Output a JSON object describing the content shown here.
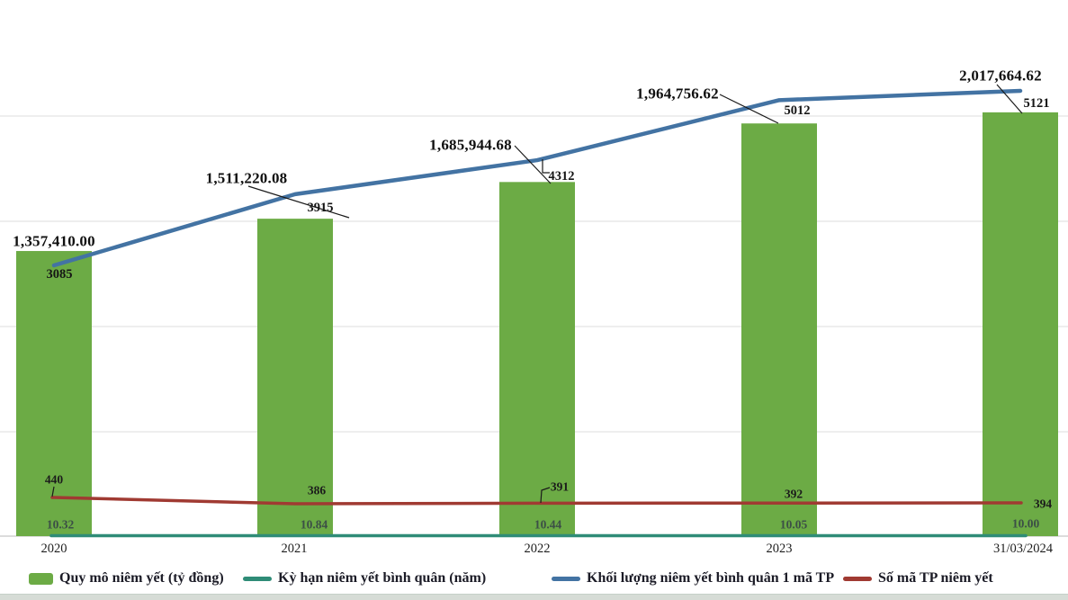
{
  "chart_data": {
    "type": "combo",
    "title": "",
    "categories": [
      "2020",
      "2021",
      "2022",
      "2023",
      "31/03/2024"
    ],
    "series": [
      {
        "name": "Quy mô niêm yết (tỷ đồng)",
        "type": "bar",
        "axis": "primary",
        "color": "#6cab45",
        "values": [
          1357410.0,
          1511220.08,
          1685944.68,
          1964756.62,
          2017664.62
        ],
        "labels": [
          "1,357,410.00",
          "1,511,220.08",
          "1,685,944.68",
          "1,964,756.62",
          "2,017,664.62"
        ]
      },
      {
        "name": "Kỳ hạn niêm yết bình quân (năm)",
        "type": "line",
        "axis": "secondary",
        "color": "#2f8c77",
        "values": [
          10.32,
          10.84,
          10.44,
          10.05,
          10.0
        ],
        "labels": [
          "10.32",
          "10.84",
          "10.44",
          "10.05",
          "10.00"
        ]
      },
      {
        "name": "Khối lượng niêm yết bình quân 1 mã TP",
        "type": "line",
        "axis": "secondary",
        "color": "#4373a3",
        "values": [
          3085,
          3915,
          4312,
          5012,
          5121
        ],
        "labels": [
          "3085",
          "3915",
          "4312",
          "5012",
          "5121"
        ]
      },
      {
        "name": "Số mã TP niêm yết",
        "type": "line",
        "axis": "secondary",
        "color": "#a03a32",
        "values": [
          440,
          386,
          391,
          392,
          394
        ],
        "labels": [
          "440",
          "386",
          "391",
          "392",
          "394"
        ]
      }
    ],
    "legend_position": "bottom",
    "grid": true,
    "primary_axis": {
      "min": 0,
      "max": 2500000,
      "gridline_interval": 500000,
      "tick_labels_visible": false
    }
  },
  "legend": {
    "items": [
      {
        "label": "Quy mô niêm yết (tỷ đồng)",
        "color": "#6cab45",
        "marker": "rect"
      },
      {
        "label": "Kỳ hạn niêm yết bình quân (năm)",
        "color": "#2f8c77",
        "marker": "line"
      },
      {
        "label": "Khối lượng niêm yết bình quân 1 mã TP",
        "color": "#4373a3",
        "marker": "line"
      },
      {
        "label": "Số mã TP niêm yết",
        "color": "#a03a32",
        "marker": "line"
      }
    ]
  },
  "colors": {
    "gridline": "#dedede",
    "axis_line": "#d0d0d0",
    "leader_line": "#1a1a1a"
  }
}
